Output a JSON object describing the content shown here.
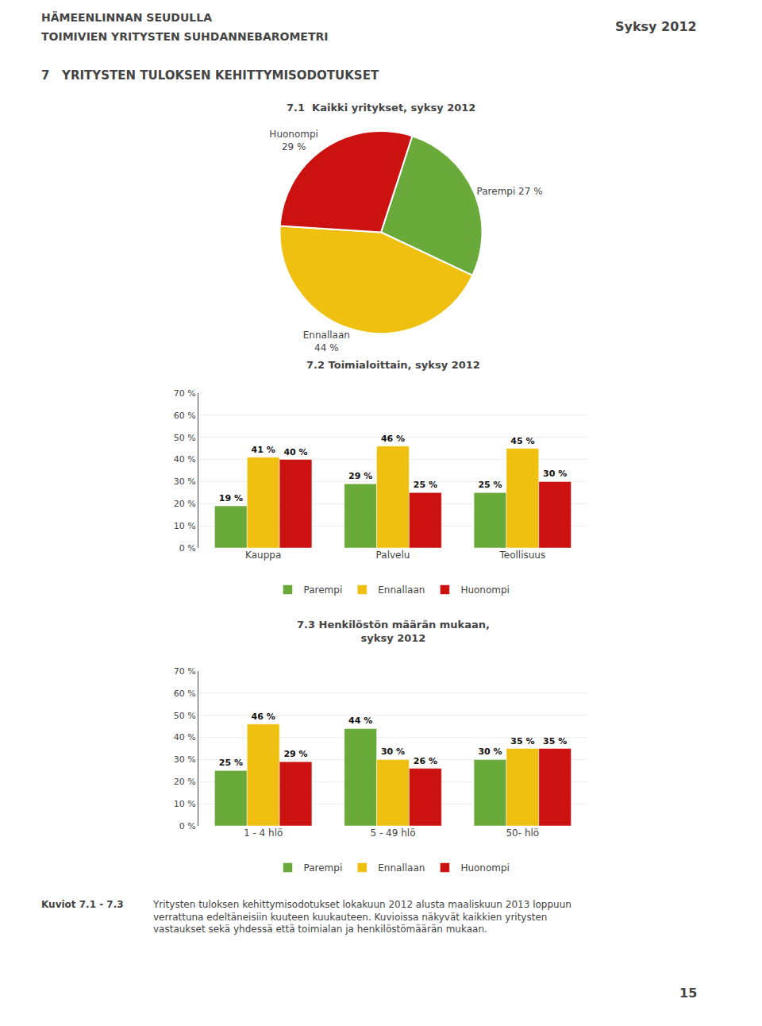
{
  "header": [
    "HÄMEENLINNAN SEUDULLA",
    "TOIMIVIEN YRITYSTEN SUHDANNEBAROMETRI"
  ],
  "badge": "Syksy 2012",
  "title": "7   YRITYSTEN TULOKSEN KEHITTYMISODOTUKSET",
  "footer": [
    "Kuviot 7.1 - 7.3",
    "Yritysten tuloksen kehittymisodotukset lokakuun 2012 alusta maaliskuun 2013 loppuun\nverrattuna edeltäneisiin kuuteen kuukauteen. Kuvioissa näkyvät kaikkien yritysten\nvastaukset sekä yhdessä että toimialan ja henkilöstömäärän mukaan."
  ],
  "page_number": "15",
  "chart_data": [
    {
      "type": "pie",
      "title": "7.1  Kaikki yritykset, syksy 2012",
      "values": [
        27,
        44,
        29
      ],
      "value_labels": [
        "Parempi 27 %",
        "Ennallaan\n44 %",
        "Huonompi\n29 %"
      ],
      "colors": [
        "#6aaa3b",
        "#f0c010",
        "#cc1111"
      ]
    },
    {
      "type": "bar",
      "title": "7.2 Toimialoittain, syksy 2012",
      "categories": [
        "Kauppa",
        "Palvelu",
        "Teollisuus"
      ],
      "series": [
        {
          "name": "Parempi",
          "color": "#6aaa3b",
          "values": [
            19,
            29,
            25
          ],
          "value_labels": [
            "19 %",
            "29 %",
            "25 %"
          ]
        },
        {
          "name": "Ennallaan",
          "color": "#f0c010",
          "values": [
            41,
            46,
            45
          ],
          "value_labels": [
            "41 %",
            "46 %",
            "45 %"
          ]
        },
        {
          "name": "Huonompi",
          "color": "#cc1111",
          "values": [
            40,
            25,
            30
          ],
          "value_labels": [
            "40 %",
            "25 %",
            "30 %"
          ]
        }
      ],
      "ylim": [
        0,
        70
      ],
      "yticks": [
        {
          "value": 0,
          "label": "0 %"
        },
        {
          "value": 10,
          "label": "10 %"
        },
        {
          "value": 20,
          "label": "20 %"
        },
        {
          "value": 30,
          "label": "30 %"
        },
        {
          "value": 40,
          "label": "40 %"
        },
        {
          "value": 50,
          "label": "50 %"
        },
        {
          "value": 60,
          "label": "60 %"
        },
        {
          "value": 70,
          "label": "70 %"
        }
      ],
      "grid": true,
      "data_labels": true,
      "legend": "bottom"
    },
    {
      "type": "bar",
      "title": "7.3 Henkilöstön määrän mukaan,\nsyksy 2012",
      "categories": [
        "1 - 4 hlö",
        "5 - 49 hlö",
        "50- hlö"
      ],
      "series": [
        {
          "name": "Parempi",
          "color": "#6aaa3b",
          "values": [
            25,
            44,
            30
          ],
          "value_labels": [
            "25 %",
            "44 %",
            "30 %"
          ]
        },
        {
          "name": "Ennallaan",
          "color": "#f0c010",
          "values": [
            46,
            30,
            35
          ],
          "value_labels": [
            "46 %",
            "30 %",
            "35 %"
          ]
        },
        {
          "name": "Huonompi",
          "color": "#cc1111",
          "values": [
            29,
            26,
            35
          ],
          "value_labels": [
            "29 %",
            "26 %",
            "35 %"
          ]
        }
      ],
      "ylim": [
        0,
        70
      ],
      "yticks": [
        {
          "value": 0,
          "label": "0 %"
        },
        {
          "value": 10,
          "label": "10 %"
        },
        {
          "value": 20,
          "label": "20 %"
        },
        {
          "value": 30,
          "label": "30 %"
        },
        {
          "value": 40,
          "label": "40 %"
        },
        {
          "value": 50,
          "label": "50 %"
        },
        {
          "value": 60,
          "label": "60 %"
        },
        {
          "value": 70,
          "label": "70 %"
        }
      ],
      "grid": true,
      "data_labels": true,
      "legend": "bottom"
    }
  ]
}
